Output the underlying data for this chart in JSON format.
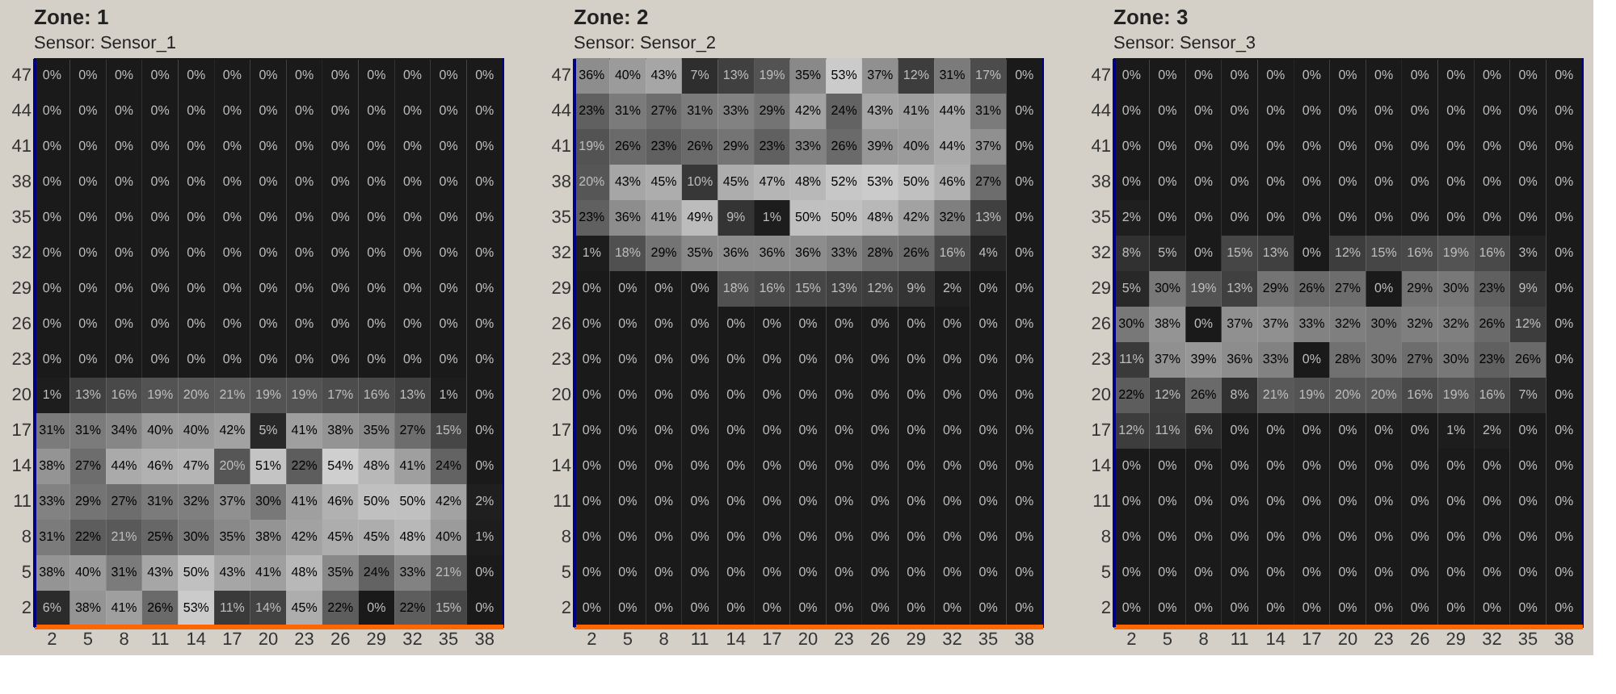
{
  "chart_data": [
    {
      "type": "heatmap",
      "title": "Zone: 1",
      "subtitle": "Sensor: Sensor_1",
      "categories": [
        "2",
        "5",
        "8",
        "11",
        "14",
        "17",
        "20",
        "23",
        "26",
        "29",
        "32",
        "35",
        "38"
      ],
      "y_categories": [
        "47",
        "44",
        "41",
        "38",
        "35",
        "32",
        "29",
        "26",
        "23",
        "20",
        "17",
        "14",
        "11",
        "8",
        "5",
        "2"
      ],
      "cells": [
        [
          0,
          0,
          0,
          0,
          0,
          0,
          0,
          0,
          0,
          0,
          0,
          0,
          0
        ],
        [
          0,
          0,
          0,
          0,
          0,
          0,
          0,
          0,
          0,
          0,
          0,
          0,
          0
        ],
        [
          0,
          0,
          0,
          0,
          0,
          0,
          0,
          0,
          0,
          0,
          0,
          0,
          0
        ],
        [
          0,
          0,
          0,
          0,
          0,
          0,
          0,
          0,
          0,
          0,
          0,
          0,
          0
        ],
        [
          0,
          0,
          0,
          0,
          0,
          0,
          0,
          0,
          0,
          0,
          0,
          0,
          0
        ],
        [
          0,
          0,
          0,
          0,
          0,
          0,
          0,
          0,
          0,
          0,
          0,
          0,
          0
        ],
        [
          0,
          0,
          0,
          0,
          0,
          0,
          0,
          0,
          0,
          0,
          0,
          0,
          0
        ],
        [
          0,
          0,
          0,
          0,
          0,
          0,
          0,
          0,
          0,
          0,
          0,
          0,
          0
        ],
        [
          0,
          0,
          0,
          0,
          0,
          0,
          0,
          0,
          0,
          0,
          0,
          0,
          0
        ],
        [
          1,
          13,
          16,
          19,
          20,
          21,
          19,
          19,
          17,
          16,
          13,
          1,
          0
        ],
        [
          31,
          31,
          34,
          40,
          40,
          42,
          5,
          41,
          38,
          35,
          27,
          15,
          0
        ],
        [
          38,
          27,
          44,
          46,
          47,
          20,
          51,
          22,
          54,
          48,
          41,
          24,
          0
        ],
        [
          33,
          29,
          27,
          31,
          32,
          37,
          30,
          41,
          46,
          50,
          50,
          42,
          2
        ],
        [
          31,
          22,
          21,
          25,
          30,
          35,
          38,
          42,
          45,
          45,
          48,
          40,
          1
        ],
        [
          38,
          40,
          31,
          43,
          50,
          43,
          41,
          48,
          35,
          24,
          33,
          21,
          0
        ],
        [
          6,
          38,
          41,
          26,
          53,
          11,
          14,
          45,
          22,
          0,
          22,
          15,
          0
        ]
      ],
      "cell_labels": [
        [
          "0%",
          "0%",
          "0%",
          "0%",
          "0%",
          "0%",
          "0%",
          "0%",
          "0%",
          "0%",
          "0%",
          "0%",
          "0%"
        ],
        [
          "0%",
          "0%",
          "0%",
          "0%",
          "0%",
          "0%",
          "0%",
          "0%",
          "0%",
          "0%",
          "0%",
          "0%",
          "0%"
        ],
        [
          "0%",
          "0%",
          "0%",
          "0%",
          "0%",
          "0%",
          "0%",
          "0%",
          "0%",
          "0%",
          "0%",
          "0%",
          "0%"
        ],
        [
          "0%",
          "0%",
          "0%",
          "0%",
          "0%",
          "0%",
          "0%",
          "0%",
          "0%",
          "0%",
          "0%",
          "0%",
          "0%"
        ],
        [
          "0%",
          "0%",
          "0%",
          "0%",
          "0%",
          "0%",
          "0%",
          "0%",
          "0%",
          "0%",
          "0%",
          "0%",
          "0%"
        ],
        [
          "0%",
          "0%",
          "0%",
          "0%",
          "0%",
          "0%",
          "0%",
          "0%",
          "0%",
          "0%",
          "0%",
          "0%",
          "0%"
        ],
        [
          "0%",
          "0%",
          "0%",
          "0%",
          "0%",
          "0%",
          "0%",
          "0%",
          "0%",
          "0%",
          "0%",
          "0%",
          "0%"
        ],
        [
          "0%",
          "0%",
          "0%",
          "0%",
          "0%",
          "0%",
          "0%",
          "0%",
          "0%",
          "0%",
          "0%",
          "0%",
          "0%"
        ],
        [
          "0%",
          "0%",
          "0%",
          "0%",
          "0%",
          "0%",
          "0%",
          "0%",
          "0%",
          "0%",
          "0%",
          "0%",
          "0%"
        ],
        [
          "1%",
          "13%",
          "16%",
          "19%",
          "20%",
          "21%",
          "19%",
          "19%",
          "17%",
          "16%",
          "13%",
          "1%",
          "0%"
        ],
        [
          "31%",
          "31%",
          "34%",
          "40%",
          "40%",
          "42%",
          "5%",
          "41%",
          "38%",
          "35%",
          "27%",
          "15%",
          "0%"
        ],
        [
          "38%",
          "27%",
          "44%",
          "46%",
          "47%",
          "20%",
          "51%",
          "22%",
          "54%",
          "48%",
          "41%",
          "24%",
          "0%"
        ],
        [
          "33%",
          "29%",
          "27%",
          "31%",
          "32%",
          "37%",
          "30%",
          "41%",
          "46%",
          "50%",
          "50%",
          "42%",
          "2%"
        ],
        [
          "31%",
          "22%",
          "21%",
          "25%",
          "30%",
          "35%",
          "38%",
          "42%",
          "45%",
          "45%",
          "48%",
          "40%",
          "1%"
        ],
        [
          "38%",
          "40%",
          "31%",
          "43%",
          "50%",
          "43%",
          "41%",
          "48%",
          "35%",
          "24%",
          "33%",
          "21%",
          "0%"
        ],
        [
          "6%",
          "38%",
          "41%",
          "26%",
          "53%",
          "11%",
          "14%",
          "45%",
          "22%",
          "0%",
          "22%",
          "15%",
          "0%"
        ]
      ]
    },
    {
      "type": "heatmap",
      "title": "Zone: 2",
      "subtitle": "Sensor: Sensor_2",
      "categories": [
        "2",
        "5",
        "8",
        "11",
        "14",
        "17",
        "20",
        "23",
        "26",
        "29",
        "32",
        "35",
        "38"
      ],
      "y_categories": [
        "47",
        "44",
        "41",
        "38",
        "35",
        "32",
        "29",
        "26",
        "23",
        "20",
        "17",
        "14",
        "11",
        "8",
        "5",
        "2"
      ],
      "cells": [
        [
          36,
          40,
          43,
          7,
          13,
          19,
          35,
          53,
          37,
          12,
          31,
          17,
          0
        ],
        [
          23,
          31,
          27,
          31,
          33,
          29,
          42,
          24,
          43,
          41,
          44,
          31,
          0
        ],
        [
          19,
          26,
          23,
          26,
          29,
          23,
          33,
          26,
          39,
          40,
          44,
          37,
          0
        ],
        [
          20,
          43,
          45,
          10,
          45,
          47,
          48,
          52,
          53,
          50,
          46,
          27,
          0
        ],
        [
          23,
          36,
          41,
          49,
          9,
          1,
          50,
          50,
          48,
          42,
          32,
          13,
          0
        ],
        [
          1,
          18,
          29,
          35,
          36,
          36,
          36,
          33,
          28,
          26,
          16,
          4,
          0
        ],
        [
          0,
          0,
          0,
          0,
          18,
          16,
          15,
          13,
          12,
          9,
          2,
          0,
          0
        ],
        [
          0,
          0,
          0,
          0,
          0,
          0,
          0,
          0,
          0,
          0,
          0,
          0,
          0
        ],
        [
          0,
          0,
          0,
          0,
          0,
          0,
          0,
          0,
          0,
          0,
          0,
          0,
          0
        ],
        [
          0,
          0,
          0,
          0,
          0,
          0,
          0,
          0,
          0,
          0,
          0,
          0,
          0
        ],
        [
          0,
          0,
          0,
          0,
          0,
          0,
          0,
          0,
          0,
          0,
          0,
          0,
          0
        ],
        [
          0,
          0,
          0,
          0,
          0,
          0,
          0,
          0,
          0,
          0,
          0,
          0,
          0
        ],
        [
          0,
          0,
          0,
          0,
          0,
          0,
          0,
          0,
          0,
          0,
          0,
          0,
          0
        ],
        [
          0,
          0,
          0,
          0,
          0,
          0,
          0,
          0,
          0,
          0,
          0,
          0,
          0
        ],
        [
          0,
          0,
          0,
          0,
          0,
          0,
          0,
          0,
          0,
          0,
          0,
          0,
          0
        ],
        [
          0,
          0,
          0,
          0,
          0,
          0,
          0,
          0,
          0,
          0,
          0,
          0,
          0
        ]
      ],
      "cell_labels": [
        [
          "36%",
          "40%",
          "43%",
          "7%",
          "13%",
          "19%",
          "35%",
          "53%",
          "37%",
          "12%",
          "31%",
          "17%",
          "0%"
        ],
        [
          "23%",
          "31%",
          "27%",
          "31%",
          "33%",
          "29%",
          "42%",
          "24%",
          "43%",
          "41%",
          "44%",
          "31%",
          "0%"
        ],
        [
          "19%",
          "26%",
          "23%",
          "26%",
          "29%",
          "23%",
          "33%",
          "26%",
          "39%",
          "40%",
          "44%",
          "37%",
          "0%"
        ],
        [
          "20%",
          "43%",
          "45%",
          "10%",
          "45%",
          "47%",
          "48%",
          "52%",
          "53%",
          "50%",
          "46%",
          "27%",
          "0%"
        ],
        [
          "23%",
          "36%",
          "41%",
          "49%",
          "9%",
          "1%",
          "50%",
          "50%",
          "48%",
          "42%",
          "32%",
          "13%",
          "0%"
        ],
        [
          "1%",
          "18%",
          "29%",
          "35%",
          "36%",
          "36%",
          "36%",
          "33%",
          "28%",
          "26%",
          "16%",
          "4%",
          "0%"
        ],
        [
          "0%",
          "0%",
          "0%",
          "0%",
          "18%",
          "16%",
          "15%",
          "13%",
          "12%",
          "9%",
          "2%",
          "0%",
          "0%"
        ],
        [
          "0%",
          "0%",
          "0%",
          "0%",
          "0%",
          "0%",
          "0%",
          "0%",
          "0%",
          "0%",
          "0%",
          "0%",
          "0%"
        ],
        [
          "0%",
          "0%",
          "0%",
          "0%",
          "0%",
          "0%",
          "0%",
          "0%",
          "0%",
          "0%",
          "0%",
          "0%",
          "0%"
        ],
        [
          "0%",
          "0%",
          "0%",
          "0%",
          "0%",
          "0%",
          "0%",
          "0%",
          "0%",
          "0%",
          "0%",
          "0%",
          "0%"
        ],
        [
          "0%",
          "0%",
          "0%",
          "0%",
          "0%",
          "0%",
          "0%",
          "0%",
          "0%",
          "0%",
          "0%",
          "0%",
          "0%"
        ],
        [
          "0%",
          "0%",
          "0%",
          "0%",
          "0%",
          "0%",
          "0%",
          "0%",
          "0%",
          "0%",
          "0%",
          "0%",
          "0%"
        ],
        [
          "0%",
          "0%",
          "0%",
          "0%",
          "0%",
          "0%",
          "0%",
          "0%",
          "0%",
          "0%",
          "0%",
          "0%",
          "0%"
        ],
        [
          "0%",
          "0%",
          "0%",
          "0%",
          "0%",
          "0%",
          "0%",
          "0%",
          "0%",
          "0%",
          "0%",
          "0%",
          "0%"
        ],
        [
          "0%",
          "0%",
          "0%",
          "0%",
          "0%",
          "0%",
          "0%",
          "0%",
          "0%",
          "0%",
          "0%",
          "0%",
          "0%"
        ],
        [
          "0%",
          "0%",
          "0%",
          "0%",
          "0%",
          "0%",
          "0%",
          "0%",
          "0%",
          "0%",
          "0%",
          "0%",
          "0%"
        ]
      ]
    },
    {
      "type": "heatmap",
      "title": "Zone: 3",
      "subtitle": "Sensor: Sensor_3",
      "categories": [
        "2",
        "5",
        "8",
        "11",
        "14",
        "17",
        "20",
        "23",
        "26",
        "29",
        "32",
        "35",
        "38"
      ],
      "y_categories": [
        "47",
        "44",
        "41",
        "38",
        "35",
        "32",
        "29",
        "26",
        "23",
        "20",
        "17",
        "14",
        "11",
        "8",
        "5",
        "2"
      ],
      "cells": [
        [
          0,
          0,
          0,
          0,
          0,
          0,
          0,
          0,
          0,
          0,
          0,
          0,
          0
        ],
        [
          0,
          0,
          0,
          0,
          0,
          0,
          0,
          0,
          0,
          0,
          0,
          0,
          0
        ],
        [
          0,
          0,
          0,
          0,
          0,
          0,
          0,
          0,
          0,
          0,
          0,
          0,
          0
        ],
        [
          0,
          0,
          0,
          0,
          0,
          0,
          0,
          0,
          0,
          0,
          0,
          0,
          0
        ],
        [
          2,
          0,
          0,
          0,
          0,
          0,
          0,
          0,
          0,
          0,
          0,
          0,
          0
        ],
        [
          8,
          5,
          0,
          15,
          13,
          0,
          12,
          15,
          16,
          19,
          16,
          3,
          0
        ],
        [
          5,
          30,
          19,
          13,
          29,
          26,
          27,
          0,
          29,
          30,
          23,
          9,
          0
        ],
        [
          30,
          38,
          0,
          37,
          37,
          33,
          32,
          30,
          32,
          32,
          26,
          12,
          0
        ],
        [
          11,
          37,
          39,
          36,
          33,
          0,
          28,
          30,
          27,
          30,
          23,
          26,
          0
        ],
        [
          22,
          12,
          26,
          8,
          21,
          19,
          20,
          20,
          16,
          19,
          16,
          7,
          0
        ],
        [
          12,
          11,
          6,
          0,
          0,
          0,
          0,
          0,
          0,
          1,
          2,
          0,
          0
        ],
        [
          0,
          0,
          0,
          0,
          0,
          0,
          0,
          0,
          0,
          0,
          0,
          0,
          0
        ],
        [
          0,
          0,
          0,
          0,
          0,
          0,
          0,
          0,
          0,
          0,
          0,
          0,
          0
        ],
        [
          0,
          0,
          0,
          0,
          0,
          0,
          0,
          0,
          0,
          0,
          0,
          0,
          0
        ],
        [
          0,
          0,
          0,
          0,
          0,
          0,
          0,
          0,
          0,
          0,
          0,
          0,
          0
        ],
        [
          0,
          0,
          0,
          0,
          0,
          0,
          0,
          0,
          0,
          0,
          0,
          0,
          0
        ]
      ],
      "cell_labels": [
        [
          "0%",
          "0%",
          "0%",
          "0%",
          "0%",
          "0%",
          "0%",
          "0%",
          "0%",
          "0%",
          "0%",
          "0%",
          "0%"
        ],
        [
          "0%",
          "0%",
          "0%",
          "0%",
          "0%",
          "0%",
          "0%",
          "0%",
          "0%",
          "0%",
          "0%",
          "0%",
          "0%"
        ],
        [
          "0%",
          "0%",
          "0%",
          "0%",
          "0%",
          "0%",
          "0%",
          "0%",
          "0%",
          "0%",
          "0%",
          "0%",
          "0%"
        ],
        [
          "0%",
          "0%",
          "0%",
          "0%",
          "0%",
          "0%",
          "0%",
          "0%",
          "0%",
          "0%",
          "0%",
          "0%",
          "0%"
        ],
        [
          "2%",
          "0%",
          "0%",
          "0%",
          "0%",
          "0%",
          "0%",
          "0%",
          "0%",
          "0%",
          "0%",
          "0%",
          "0%"
        ],
        [
          "8%",
          "5%",
          "0%",
          "15%",
          "13%",
          "0%",
          "12%",
          "15%",
          "16%",
          "19%",
          "16%",
          "3%",
          "0%"
        ],
        [
          "5%",
          "30%",
          "19%",
          "13%",
          "29%",
          "26%",
          "27%",
          "0%",
          "29%",
          "30%",
          "23%",
          "9%",
          "0%"
        ],
        [
          "30%",
          "38%",
          "0%",
          "37%",
          "37%",
          "33%",
          "32%",
          "30%",
          "32%",
          "32%",
          "26%",
          "12%",
          "0%"
        ],
        [
          "11%",
          "37%",
          "39%",
          "36%",
          "33%",
          "0%",
          "28%",
          "30%",
          "27%",
          "30%",
          "23%",
          "26%",
          "0%"
        ],
        [
          "22%",
          "12%",
          "26%",
          "8%",
          "21%",
          "19%",
          "20%",
          "20%",
          "16%",
          "19%",
          "16%",
          "7%",
          "0%"
        ],
        [
          "12%",
          "11%",
          "6%",
          "0%",
          "0%",
          "0%",
          "0%",
          "0%",
          "0%",
          "1%",
          "2%",
          "0%",
          "0%"
        ],
        [
          "0%",
          "0%",
          "0%",
          "0%",
          "0%",
          "0%",
          "0%",
          "0%",
          "0%",
          "0%",
          "0%",
          "0%",
          "0%"
        ],
        [
          "0%",
          "0%",
          "0%",
          "0%",
          "0%",
          "0%",
          "0%",
          "0%",
          "0%",
          "0%",
          "0%",
          "0%",
          "0%"
        ],
        [
          "0%",
          "0%",
          "0%",
          "0%",
          "0%",
          "0%",
          "0%",
          "0%",
          "0%",
          "0%",
          "0%",
          "0%",
          "0%"
        ],
        [
          "0%",
          "0%",
          "0%",
          "0%",
          "0%",
          "0%",
          "0%",
          "0%",
          "0%",
          "0%",
          "0%",
          "0%",
          "0%"
        ],
        [
          "0%",
          "0%",
          "0%",
          "0%",
          "0%",
          "0%",
          "0%",
          "0%",
          "0%",
          "0%",
          "0%",
          "0%",
          "0%"
        ]
      ]
    }
  ]
}
